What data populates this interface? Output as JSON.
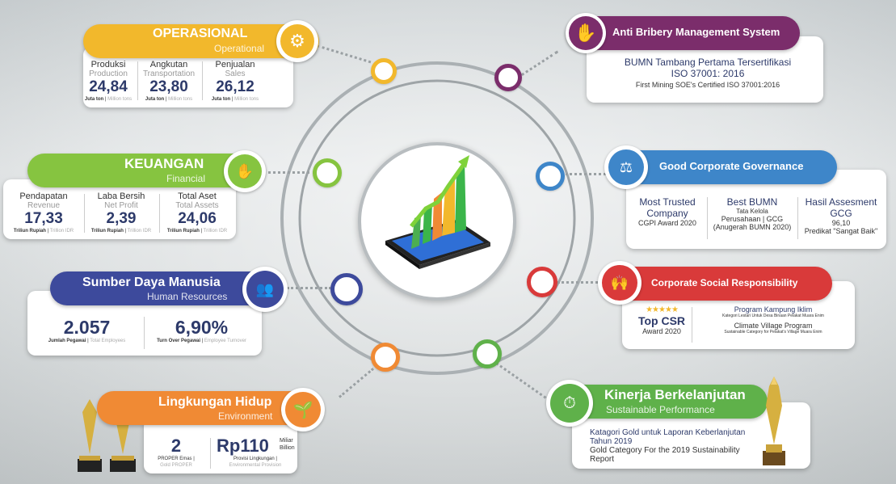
{
  "colors": {
    "operasional": "#f2b82c",
    "keuangan": "#86c440",
    "sdm": "#3d4a9c",
    "lingkungan": "#f08a34",
    "antibribery": "#7b2d6b",
    "gcg": "#3e86c9",
    "csr": "#d93a3a",
    "kinerja": "#5fb14a"
  },
  "center": {
    "icon": "tablet-growth-chart-icon"
  },
  "operasional": {
    "title": "OPERASIONAL",
    "subtitle": "Operational",
    "icon": "gear-bulb-icon",
    "items": [
      {
        "label": "Produksi",
        "label_en": "Production",
        "value": "24,84",
        "unit": "Juta ton",
        "unit_en": "Million tons"
      },
      {
        "label": "Angkutan",
        "label_en": "Transportation",
        "value": "23,80",
        "unit": "Juta ton",
        "unit_en": "Million tons"
      },
      {
        "label": "Penjualan",
        "label_en": "Sales",
        "value": "26,12",
        "unit": "Juta ton",
        "unit_en": "Million tons"
      }
    ]
  },
  "keuangan": {
    "title": "KEUANGAN",
    "subtitle": "Financial",
    "icon": "hand-coins-icon",
    "items": [
      {
        "label": "Pendapatan",
        "label_en": "Revenue",
        "value": "17,33",
        "unit": "Triliun Rupiah",
        "unit_en": "Trillion IDR"
      },
      {
        "label": "Laba Bersih",
        "label_en": "Net Profit",
        "value": "2,39",
        "unit": "Triliun Rupiah",
        "unit_en": "Trillion IDR"
      },
      {
        "label": "Total Aset",
        "label_en": "Total Assets",
        "value": "24,06",
        "unit": "Triliun Rupiah",
        "unit_en": "Trillion IDR"
      }
    ]
  },
  "sdm": {
    "title": "Sumber Daya Manusia",
    "subtitle": "Human Resources",
    "icon": "people-network-icon",
    "items": [
      {
        "value": "2.057",
        "unit": "Jumlah Pegawai",
        "unit_en": "Total Employees"
      },
      {
        "value": "6,90%",
        "unit": "Turn Over Pegawai",
        "unit_en": "Employee Turnover"
      }
    ]
  },
  "lingkungan": {
    "title": "Lingkungan Hidup",
    "subtitle": "Environment",
    "icon": "sprout-icon",
    "proper": {
      "value": "2",
      "unit": "PROPER Emas |",
      "unit_en": "Gold PROPER"
    },
    "provisi": {
      "value": "Rp110",
      "suffix1": "Miliar",
      "suffix2": "Billion",
      "unit": "Provisi Lingkungan |",
      "unit_en": "Environmental Provision"
    }
  },
  "antibribery": {
    "title": "Anti Bribery Management System",
    "icon": "stop-hand-icon",
    "line1": "BUMN Tambang Pertama Tersertifikasi",
    "line2": "ISO 37001: 2016",
    "line3": "First Mining SOE's Certified ISO 37001:2016"
  },
  "gcg": {
    "title": "Good Corporate Governance",
    "icon": "presentation-board-icon",
    "c1": {
      "h1": "Most Trusted",
      "h2": "Company",
      "s": "CGPI Award 2020"
    },
    "c2": {
      "h": "Best BUMN",
      "s1": "Tata Kelola",
      "s2": "Perusahaan | GCG",
      "s3": "(Anugerah BUMN 2020)"
    },
    "c3": {
      "h1": "Hasil Assesment",
      "h2": "GCG",
      "s1": "96,10",
      "s2": "Predikat \"Sangat Baik\""
    }
  },
  "csr": {
    "title": "Corporate Social Responsibility",
    "icon": "people-hands-icon",
    "stars": "★★★★★",
    "award": "Top CSR",
    "award_year": "Award 2020",
    "p1": "Program Kampung Iklim",
    "p1_sub": "Kategori Lestari Untuk Desa Binaan Pelakat Muara Enim",
    "p2": "Climate Village Program",
    "p2_sub": "Sustainable Category for Pelakat's Village Muara Enim"
  },
  "kinerja": {
    "title": "Kinerja Berkelanjutan",
    "subtitle": "Sustainable Performance",
    "icon": "speedometer-check-icon",
    "l1": "Katagori Gold untuk Laporan Keberlanjutan",
    "l2": "Tahun 2019",
    "l3": "Gold Category For the 2019 Sustainability",
    "l4": "Report"
  }
}
